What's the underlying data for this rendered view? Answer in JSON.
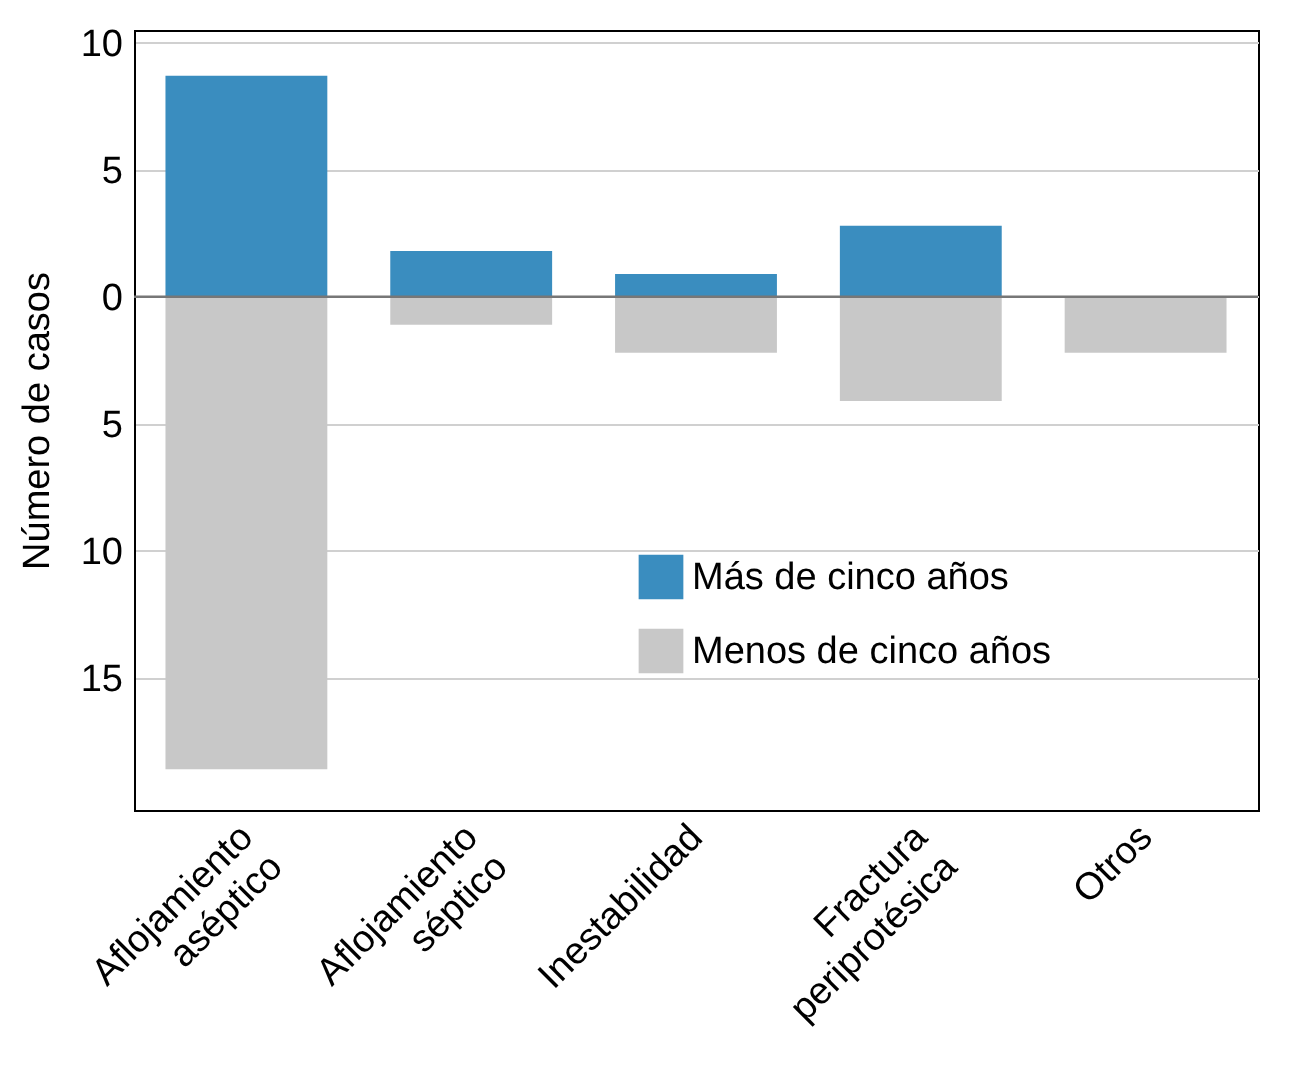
{
  "chart_data": {
    "type": "bar",
    "stacked": true,
    "ylabel": "Número de casos",
    "categories": [
      "Aflojamiento aséptico",
      "Aflojamiento séptico",
      "Inestabilidad",
      "Fractura periprotésica",
      "Otros"
    ],
    "series": [
      {
        "name": "Más de cinco años",
        "color": "#3a8dbf",
        "values": [
          8.7,
          1.8,
          0.9,
          2.8,
          null
        ]
      },
      {
        "name": "Menos de cinco años",
        "color": "#c8c8c8",
        "values": [
          -18.6,
          -1.1,
          -2.2,
          -4.1,
          -2.2
        ]
      }
    ],
    "ylim": [
      -20.2,
      10.5
    ],
    "yticks": [
      {
        "value": -15,
        "label": "15"
      },
      {
        "value": -10,
        "label": "10"
      },
      {
        "value": -5,
        "label": "5"
      },
      0,
      5,
      10
    ],
    "ref_lines": [
      {
        "axis": "y",
        "value": 0,
        "color": "#777777"
      }
    ],
    "grid": "y",
    "legend": "right"
  }
}
